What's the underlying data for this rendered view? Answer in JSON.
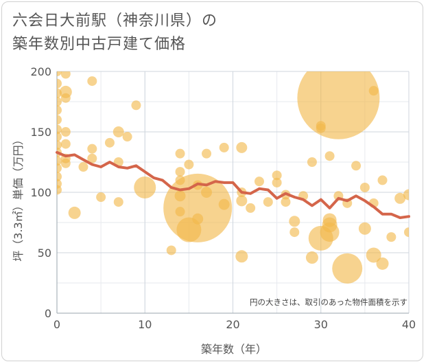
{
  "chart_data": {
    "type": "scatter",
    "title_lines": [
      "六会日大前駅（神奈川県）の",
      "築年数別中古戸建て価格"
    ],
    "xlabel": "築年数（年）",
    "ylabel": "坪（3.3㎡）単価（万円）",
    "xlim": [
      0,
      40
    ],
    "ylim": [
      0,
      200
    ],
    "x_ticks": [
      0,
      10,
      20,
      30,
      40
    ],
    "y_ticks": [
      0,
      50,
      100,
      150,
      200
    ],
    "grid": true,
    "annotation": "円の大きさは、取引のあった物件面積を示す",
    "bubble_color": "#f2b84b",
    "line_color": "#d4654a",
    "points": [
      {
        "x": 0,
        "y": 200,
        "s": 7
      },
      {
        "x": 0,
        "y": 190,
        "s": 7
      },
      {
        "x": 0,
        "y": 182,
        "s": 7
      },
      {
        "x": 0,
        "y": 175,
        "s": 7
      },
      {
        "x": 0,
        "y": 168,
        "s": 7
      },
      {
        "x": 0,
        "y": 160,
        "s": 7
      },
      {
        "x": 0,
        "y": 152,
        "s": 7
      },
      {
        "x": 0,
        "y": 146,
        "s": 7
      },
      {
        "x": 0,
        "y": 139,
        "s": 7
      },
      {
        "x": 0,
        "y": 133,
        "s": 7
      },
      {
        "x": 0,
        "y": 126,
        "s": 7
      },
      {
        "x": 0,
        "y": 120,
        "s": 7
      },
      {
        "x": 0,
        "y": 113,
        "s": 7
      },
      {
        "x": 0,
        "y": 107,
        "s": 7
      },
      {
        "x": 0,
        "y": 102,
        "s": 7
      },
      {
        "x": 1,
        "y": 198,
        "s": 7
      },
      {
        "x": 1,
        "y": 183,
        "s": 9
      },
      {
        "x": 1,
        "y": 178,
        "s": 7
      },
      {
        "x": 1,
        "y": 150,
        "s": 7
      },
      {
        "x": 1,
        "y": 140,
        "s": 7
      },
      {
        "x": 1,
        "y": 128,
        "s": 7
      },
      {
        "x": 1,
        "y": 124,
        "s": 7
      },
      {
        "x": 2,
        "y": 83,
        "s": 9
      },
      {
        "x": 3,
        "y": 121,
        "s": 7
      },
      {
        "x": 4,
        "y": 192,
        "s": 7
      },
      {
        "x": 4,
        "y": 136,
        "s": 7
      },
      {
        "x": 4,
        "y": 128,
        "s": 7
      },
      {
        "x": 5,
        "y": 96,
        "s": 7
      },
      {
        "x": 6,
        "y": 141,
        "s": 7
      },
      {
        "x": 7,
        "y": 150,
        "s": 8
      },
      {
        "x": 7,
        "y": 125,
        "s": 7
      },
      {
        "x": 7,
        "y": 92,
        "s": 7
      },
      {
        "x": 8,
        "y": 146,
        "s": 7
      },
      {
        "x": 9,
        "y": 172,
        "s": 7
      },
      {
        "x": 10,
        "y": 104,
        "s": 16
      },
      {
        "x": 13,
        "y": 52,
        "s": 7
      },
      {
        "x": 14,
        "y": 132,
        "s": 7
      },
      {
        "x": 14,
        "y": 117,
        "s": 7
      },
      {
        "x": 14,
        "y": 110,
        "s": 7
      },
      {
        "x": 14,
        "y": 97,
        "s": 8
      },
      {
        "x": 14,
        "y": 84,
        "s": 7
      },
      {
        "x": 15,
        "y": 123,
        "s": 7
      },
      {
        "x": 15,
        "y": 69,
        "s": 18
      },
      {
        "x": 16,
        "y": 87,
        "s": 50
      },
      {
        "x": 16,
        "y": 78,
        "s": 8
      },
      {
        "x": 16,
        "y": 106,
        "s": 7
      },
      {
        "x": 17,
        "y": 132,
        "s": 7
      },
      {
        "x": 17,
        "y": 100,
        "s": 8
      },
      {
        "x": 19,
        "y": 137,
        "s": 7
      },
      {
        "x": 19,
        "y": 90,
        "s": 8
      },
      {
        "x": 21,
        "y": 137,
        "s": 8
      },
      {
        "x": 21,
        "y": 100,
        "s": 7
      },
      {
        "x": 21,
        "y": 93,
        "s": 8
      },
      {
        "x": 21,
        "y": 47,
        "s": 9
      },
      {
        "x": 22,
        "y": 87,
        "s": 7
      },
      {
        "x": 23,
        "y": 109,
        "s": 7
      },
      {
        "x": 24,
        "y": 92,
        "s": 7
      },
      {
        "x": 25,
        "y": 114,
        "s": 7
      },
      {
        "x": 25,
        "y": 108,
        "s": 7
      },
      {
        "x": 26,
        "y": 98,
        "s": 7
      },
      {
        "x": 26,
        "y": 92,
        "s": 7
      },
      {
        "x": 27,
        "y": 76,
        "s": 8
      },
      {
        "x": 27,
        "y": 67,
        "s": 7
      },
      {
        "x": 28,
        "y": 97,
        "s": 7
      },
      {
        "x": 29,
        "y": 125,
        "s": 7
      },
      {
        "x": 29,
        "y": 46,
        "s": 9
      },
      {
        "x": 30,
        "y": 155,
        "s": 7
      },
      {
        "x": 30,
        "y": 153,
        "s": 7
      },
      {
        "x": 30,
        "y": 62,
        "s": 18
      },
      {
        "x": 31,
        "y": 130,
        "s": 7
      },
      {
        "x": 31,
        "y": 77,
        "s": 10
      },
      {
        "x": 31,
        "y": 73,
        "s": 11
      },
      {
        "x": 31,
        "y": 67,
        "s": 14
      },
      {
        "x": 32,
        "y": 178,
        "s": 60
      },
      {
        "x": 32,
        "y": 97,
        "s": 7
      },
      {
        "x": 33,
        "y": 91,
        "s": 7
      },
      {
        "x": 33,
        "y": 37,
        "s": 22
      },
      {
        "x": 34,
        "y": 122,
        "s": 7
      },
      {
        "x": 35,
        "y": 104,
        "s": 7
      },
      {
        "x": 35,
        "y": 70,
        "s": 9
      },
      {
        "x": 36,
        "y": 184,
        "s": 7
      },
      {
        "x": 36,
        "y": 91,
        "s": 7
      },
      {
        "x": 36,
        "y": 48,
        "s": 11
      },
      {
        "x": 37,
        "y": 110,
        "s": 7
      },
      {
        "x": 37,
        "y": 41,
        "s": 9
      },
      {
        "x": 38,
        "y": 63,
        "s": 7
      },
      {
        "x": 39,
        "y": 95,
        "s": 8
      },
      {
        "x": 40,
        "y": 98,
        "s": 8
      },
      {
        "x": 40,
        "y": 67,
        "s": 7
      }
    ],
    "trend": {
      "name": "",
      "x": [
        0,
        1,
        2,
        3,
        4,
        5,
        6,
        7,
        8,
        9,
        10,
        11,
        12,
        13,
        14,
        15,
        16,
        17,
        18,
        19,
        20,
        21,
        22,
        23,
        24,
        25,
        26,
        27,
        28,
        29,
        30,
        31,
        32,
        33,
        34,
        35,
        36,
        37,
        38,
        39,
        40
      ],
      "y": [
        133,
        130,
        131,
        127,
        123,
        121,
        125,
        121,
        120,
        122,
        117,
        112,
        110,
        104,
        102,
        103,
        107,
        106,
        109,
        108,
        108,
        100,
        99,
        103,
        102,
        95,
        99,
        96,
        94,
        89,
        94,
        87,
        95,
        93,
        97,
        93,
        88,
        82,
        82,
        79,
        80
      ]
    }
  }
}
